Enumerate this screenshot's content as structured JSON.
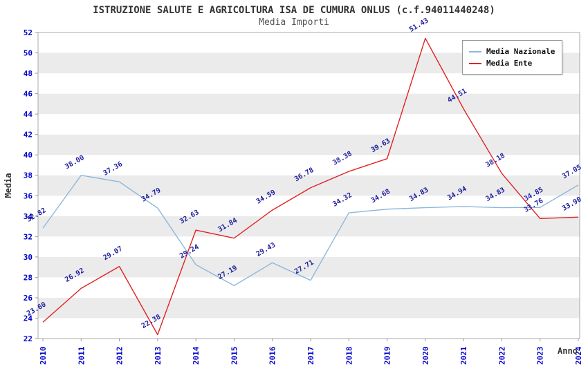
{
  "title": "ISTRUZIONE SALUTE E AGRICOLTURA ISA DE CUMURA ONLUS (c.f.94011440248)",
  "subtitle": "Media Importi",
  "axis": {
    "x_label": "Anno",
    "y_label": "Media"
  },
  "colors": {
    "national_line": "#8CB8DC",
    "ente_line": "#E02222",
    "tick_label": "#0000CC",
    "data_label": "#2222A0",
    "band": "#EBEBEB",
    "plot_border": "#AAAAAA",
    "axis_text": "#333333"
  },
  "chart_data": {
    "type": "line",
    "title": "ISTRUZIONE SALUTE E AGRICOLTURA ISA DE CUMURA ONLUS (c.f.94011440248)",
    "subtitle": "Media Importi",
    "xlabel": "Anno",
    "ylabel": "Media",
    "ylim": [
      22,
      52
    ],
    "ytick_step": 2,
    "grid": "horizontal-bands",
    "legend_position": "top-right",
    "x": [
      2010,
      2011,
      2012,
      2013,
      2014,
      2015,
      2016,
      2017,
      2018,
      2019,
      2020,
      2021,
      2022,
      2023,
      2024
    ],
    "series": [
      {
        "name": "Media Nazionale",
        "color": "#8CB8DC",
        "values": [
          32.82,
          38.0,
          37.36,
          34.79,
          29.24,
          27.19,
          29.43,
          27.71,
          34.32,
          34.68,
          34.83,
          34.94,
          34.83,
          34.85,
          37.05
        ]
      },
      {
        "name": "Media Ente",
        "color": "#E02222",
        "values": [
          23.6,
          26.92,
          29.07,
          22.38,
          32.63,
          31.84,
          34.59,
          36.78,
          38.38,
          39.63,
          51.43,
          44.51,
          38.18,
          33.76,
          33.9
        ]
      }
    ]
  }
}
